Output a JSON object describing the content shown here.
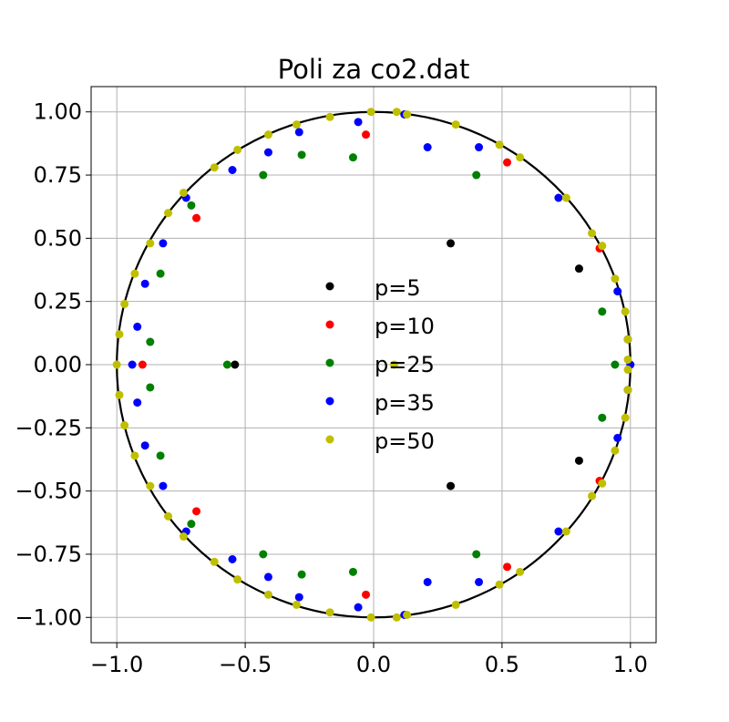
{
  "chart_data": {
    "type": "scatter",
    "title": "Poli za co2.dat",
    "xlabel": "",
    "ylabel": "",
    "xlim": [
      -1.1,
      1.1
    ],
    "ylim": [
      -1.1,
      1.1
    ],
    "xticks": [
      -1.0,
      -0.5,
      0.0,
      0.5,
      1.0
    ],
    "xtick_labels": [
      "−1.0",
      "−0.5",
      "0.0",
      "0.5",
      "1.0"
    ],
    "yticks": [
      1.0,
      0.75,
      0.5,
      0.25,
      0.0,
      -0.25,
      -0.5,
      -0.75,
      -1.0
    ],
    "ytick_labels": [
      "1.00",
      "0.75",
      "0.50",
      "0.25",
      "0.00",
      "−0.25",
      "−0.50",
      "−0.75",
      "−1.00"
    ],
    "grid": true,
    "unit_circle": {
      "center": [
        0,
        0
      ],
      "radius": 1.0,
      "color": "#000000"
    },
    "legend_position": "center",
    "series": [
      {
        "name": "p=5",
        "color": "#000000",
        "points": [
          [
            0.3,
            0.48
          ],
          [
            0.3,
            -0.48
          ],
          [
            0.8,
            0.38
          ],
          [
            0.8,
            -0.38
          ],
          [
            -0.54,
            0.0
          ]
        ]
      },
      {
        "name": "p=10",
        "color": "#ff0000",
        "points": [
          [
            -0.03,
            0.91
          ],
          [
            -0.03,
            -0.91
          ],
          [
            0.52,
            0.8
          ],
          [
            0.52,
            -0.8
          ],
          [
            -0.69,
            0.58
          ],
          [
            -0.69,
            -0.58
          ],
          [
            0.88,
            0.46
          ],
          [
            0.88,
            -0.46
          ],
          [
            -0.9,
            0.0
          ]
        ]
      },
      {
        "name": "p=25",
        "color": "#008000",
        "points": [
          [
            -0.43,
            0.75
          ],
          [
            -0.43,
            -0.75
          ],
          [
            -0.28,
            0.83
          ],
          [
            -0.28,
            -0.83
          ],
          [
            -0.08,
            0.82
          ],
          [
            -0.08,
            -0.82
          ],
          [
            0.4,
            0.75
          ],
          [
            0.4,
            -0.75
          ],
          [
            -0.71,
            0.63
          ],
          [
            -0.71,
            -0.63
          ],
          [
            -0.83,
            0.36
          ],
          [
            -0.83,
            -0.36
          ],
          [
            -0.87,
            0.09
          ],
          [
            -0.87,
            -0.09
          ],
          [
            0.89,
            0.21
          ],
          [
            0.89,
            -0.21
          ],
          [
            -0.57,
            0.0
          ],
          [
            0.94,
            0.0
          ]
        ]
      },
      {
        "name": "p=35",
        "color": "#0000ff",
        "points": [
          [
            -0.06,
            0.96
          ],
          [
            -0.06,
            -0.96
          ],
          [
            0.12,
            0.99
          ],
          [
            0.12,
            -0.99
          ],
          [
            0.21,
            0.86
          ],
          [
            0.21,
            -0.86
          ],
          [
            0.41,
            0.86
          ],
          [
            0.41,
            -0.86
          ],
          [
            -0.29,
            0.92
          ],
          [
            -0.29,
            -0.92
          ],
          [
            -0.41,
            0.84
          ],
          [
            -0.41,
            -0.84
          ],
          [
            -0.55,
            0.77
          ],
          [
            -0.55,
            -0.77
          ],
          [
            -0.73,
            0.66
          ],
          [
            -0.73,
            -0.66
          ],
          [
            -0.82,
            0.48
          ],
          [
            -0.82,
            -0.48
          ],
          [
            -0.89,
            0.32
          ],
          [
            -0.89,
            -0.32
          ],
          [
            -0.92,
            0.15
          ],
          [
            -0.92,
            -0.15
          ],
          [
            0.72,
            0.66
          ],
          [
            0.72,
            -0.66
          ],
          [
            0.95,
            0.29
          ],
          [
            0.95,
            -0.29
          ],
          [
            0.99,
            0.1
          ],
          [
            0.99,
            -0.1
          ],
          [
            -0.94,
            0.0
          ],
          [
            1.0,
            0.0
          ]
        ]
      },
      {
        "name": "p=50",
        "color": "#bfbf00",
        "points": [
          [
            -0.01,
            1.0
          ],
          [
            -0.01,
            -1.0
          ],
          [
            0.09,
            1.0
          ],
          [
            0.09,
            -1.0
          ],
          [
            0.13,
            0.99
          ],
          [
            0.13,
            -0.99
          ],
          [
            0.32,
            0.95
          ],
          [
            0.32,
            -0.95
          ],
          [
            0.49,
            0.87
          ],
          [
            0.49,
            -0.87
          ],
          [
            0.57,
            0.82
          ],
          [
            0.57,
            -0.82
          ],
          [
            0.75,
            0.66
          ],
          [
            0.75,
            -0.66
          ],
          [
            0.85,
            0.52
          ],
          [
            0.85,
            -0.52
          ],
          [
            0.89,
            0.47
          ],
          [
            0.89,
            -0.47
          ],
          [
            0.94,
            0.34
          ],
          [
            0.94,
            -0.34
          ],
          [
            0.98,
            0.21
          ],
          [
            0.98,
            -0.21
          ],
          [
            0.99,
            0.1
          ],
          [
            0.99,
            -0.1
          ],
          [
            0.99,
            0.02
          ],
          [
            0.99,
            -0.02
          ],
          [
            -0.17,
            0.98
          ],
          [
            -0.17,
            -0.98
          ],
          [
            -0.3,
            0.95
          ],
          [
            -0.3,
            -0.95
          ],
          [
            -0.41,
            0.91
          ],
          [
            -0.41,
            -0.91
          ],
          [
            -0.53,
            0.85
          ],
          [
            -0.53,
            -0.85
          ],
          [
            -0.62,
            0.78
          ],
          [
            -0.62,
            -0.78
          ],
          [
            -0.74,
            0.68
          ],
          [
            -0.74,
            -0.68
          ],
          [
            -0.8,
            0.6
          ],
          [
            -0.8,
            -0.6
          ],
          [
            -0.87,
            0.48
          ],
          [
            -0.87,
            -0.48
          ],
          [
            -0.93,
            0.36
          ],
          [
            -0.93,
            -0.36
          ],
          [
            -0.97,
            0.24
          ],
          [
            -0.97,
            -0.24
          ],
          [
            -0.99,
            0.12
          ],
          [
            -0.99,
            -0.12
          ],
          [
            -1.0,
            0.0
          ],
          [
            0.08,
            0.0
          ]
        ]
      }
    ]
  }
}
